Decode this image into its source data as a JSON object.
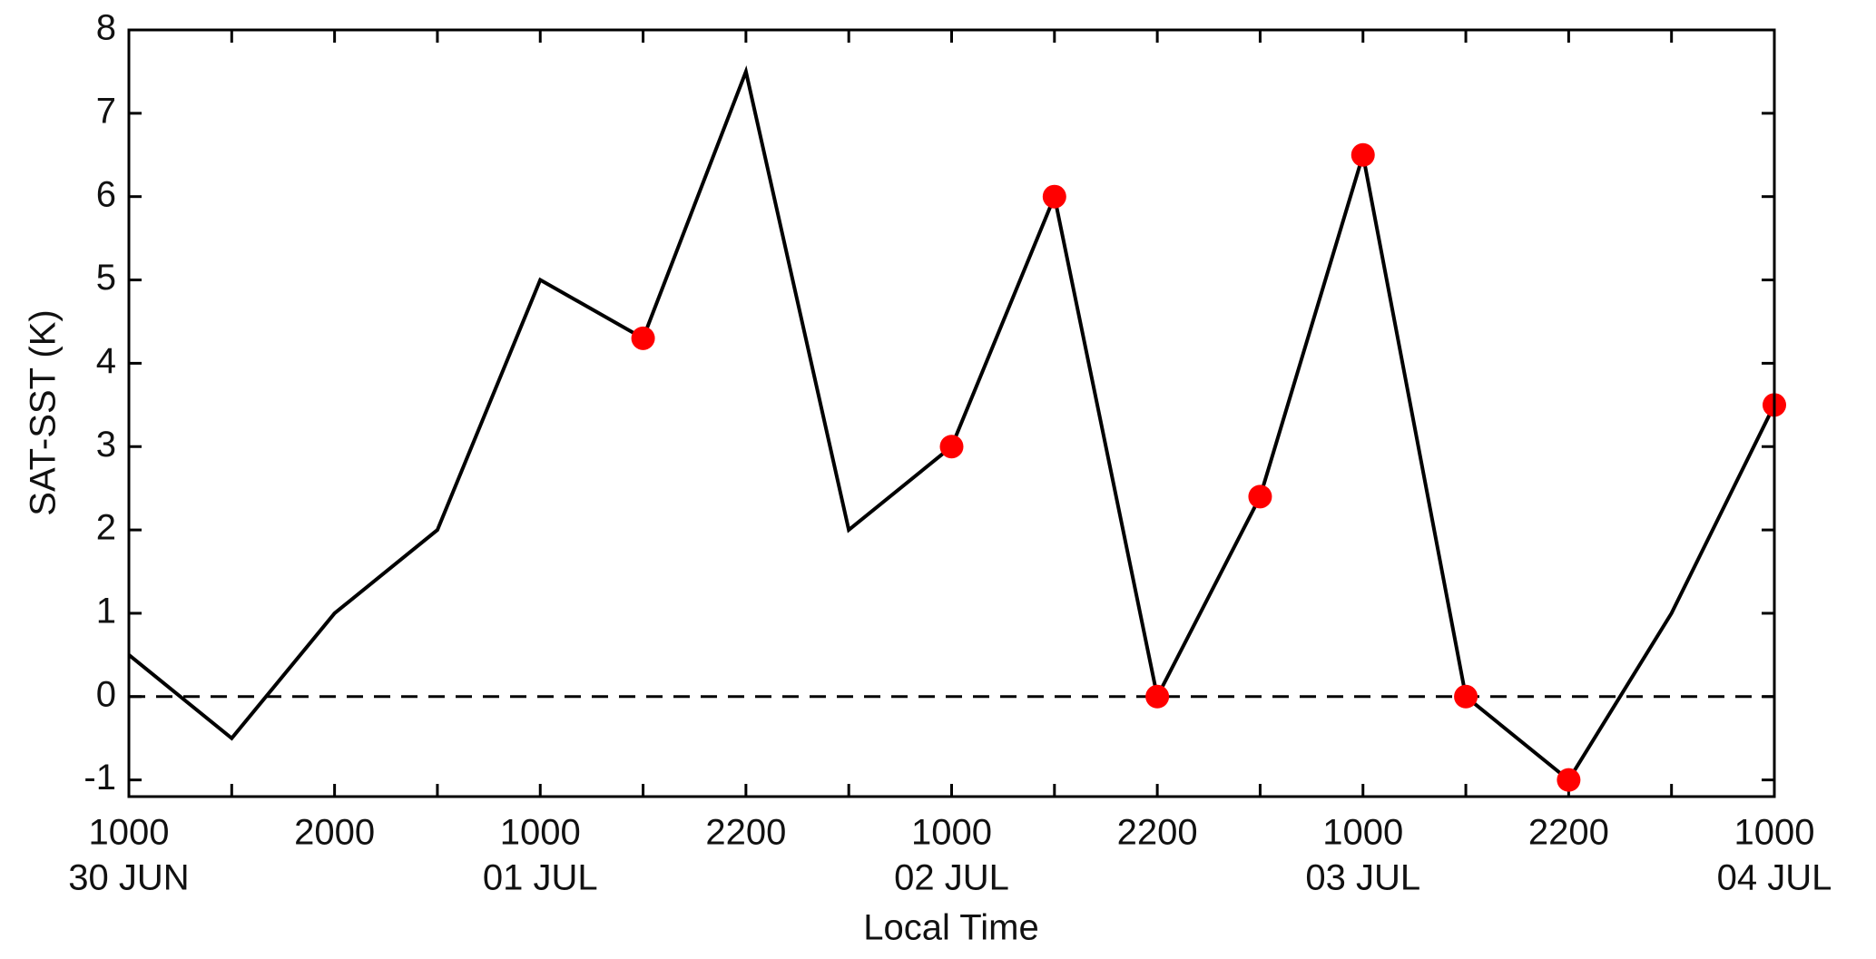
{
  "chart_data": {
    "type": "line",
    "y_label": "SAT-SST (K)",
    "x_label": "Local Time",
    "x": [
      0,
      1,
      2,
      3,
      4,
      5,
      6,
      7,
      8,
      9,
      10,
      11,
      12,
      13,
      14,
      15,
      16
    ],
    "categories": [
      "1000",
      null,
      "2000",
      null,
      "1000",
      null,
      "2200",
      null,
      "1000",
      null,
      "2200",
      null,
      "1000",
      null,
      "2200",
      null,
      "1000"
    ],
    "dates": [
      "30 JUN",
      null,
      null,
      null,
      "01 JUL",
      null,
      null,
      null,
      "02 JUL",
      null,
      null,
      null,
      "03 JUL",
      null,
      null,
      null,
      "04 JUL"
    ],
    "series": [
      {
        "color": "#000000",
        "values": [
          0.5,
          -0.5,
          1,
          2,
          5,
          4.3,
          7.5,
          2,
          3,
          6,
          0,
          2.4,
          6.5,
          0,
          -1,
          1,
          3.5
        ]
      },
      {
        "color": "#ff0000",
        "marker": true,
        "values": [
          null,
          null,
          null,
          null,
          null,
          4.3,
          null,
          null,
          3,
          6,
          0,
          2.4,
          6.5,
          0,
          -1,
          null,
          3.5
        ]
      }
    ],
    "reference_line": 0,
    "xlim": [
      0,
      16
    ],
    "ylim": [
      -1.2,
      8
    ],
    "yticks": [
      -1,
      0,
      1,
      2,
      3,
      4,
      5,
      6,
      7,
      8
    ]
  }
}
